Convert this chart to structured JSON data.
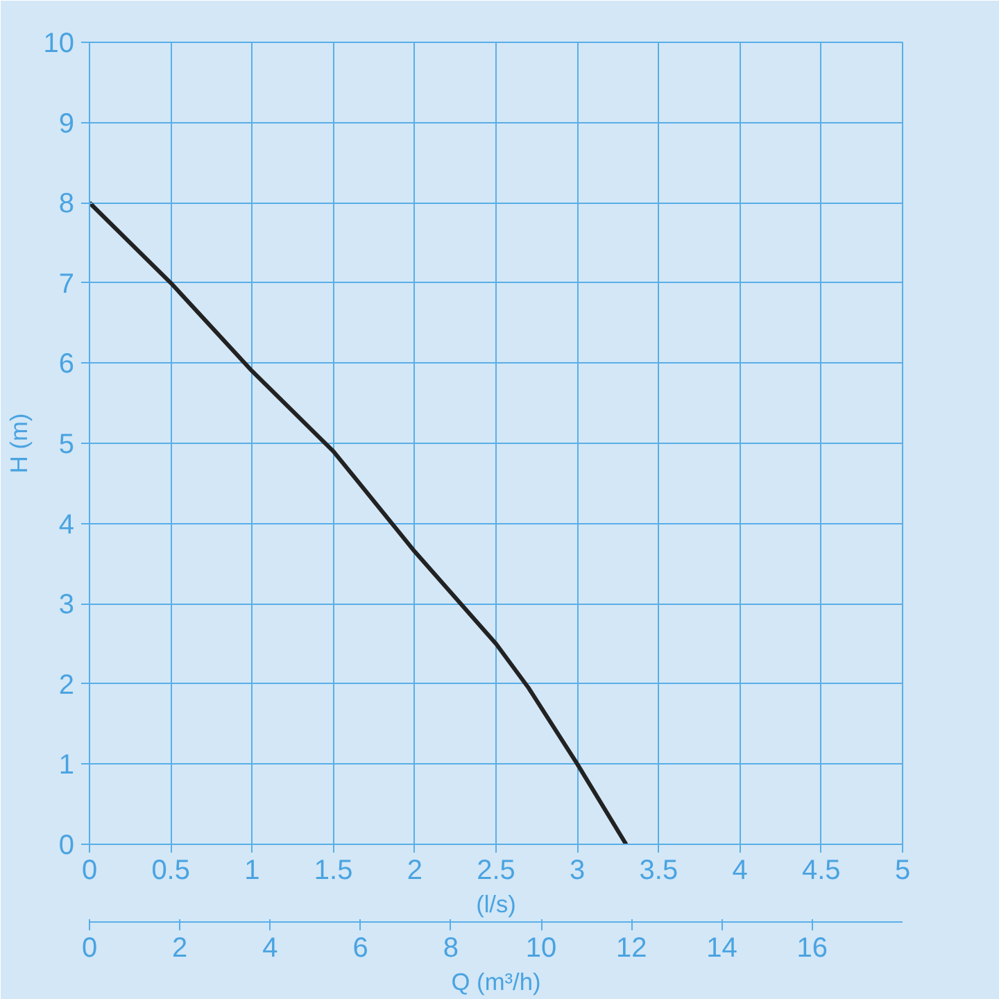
{
  "chart_data": {
    "type": "line",
    "xlabel": "(l/s)",
    "ylabel": "H (m)",
    "x2label": "Q (m³/h)",
    "x": [
      0,
      0.5,
      1,
      1.5,
      2,
      2.5,
      2.7,
      3,
      3.3
    ],
    "series": [
      {
        "color": "#222222",
        "values": [
          8,
          7,
          5.9,
          4.9,
          3.65,
          2.5,
          1.95,
          1,
          0
        ]
      }
    ],
    "xlim": [
      0,
      5
    ],
    "xticks": [
      0,
      0.5,
      1,
      1.5,
      2,
      2.5,
      3,
      3.5,
      4,
      4.5,
      5
    ],
    "ylim": [
      0,
      10
    ],
    "yticks": [
      0,
      1,
      2,
      3,
      4,
      5,
      6,
      7,
      8,
      9,
      10
    ],
    "x2lim": [
      0,
      18
    ],
    "x2ticks": [
      0,
      2,
      4,
      6,
      8,
      10,
      12,
      14,
      16
    ],
    "grid": true,
    "marker": "none",
    "line_style": "solid"
  }
}
